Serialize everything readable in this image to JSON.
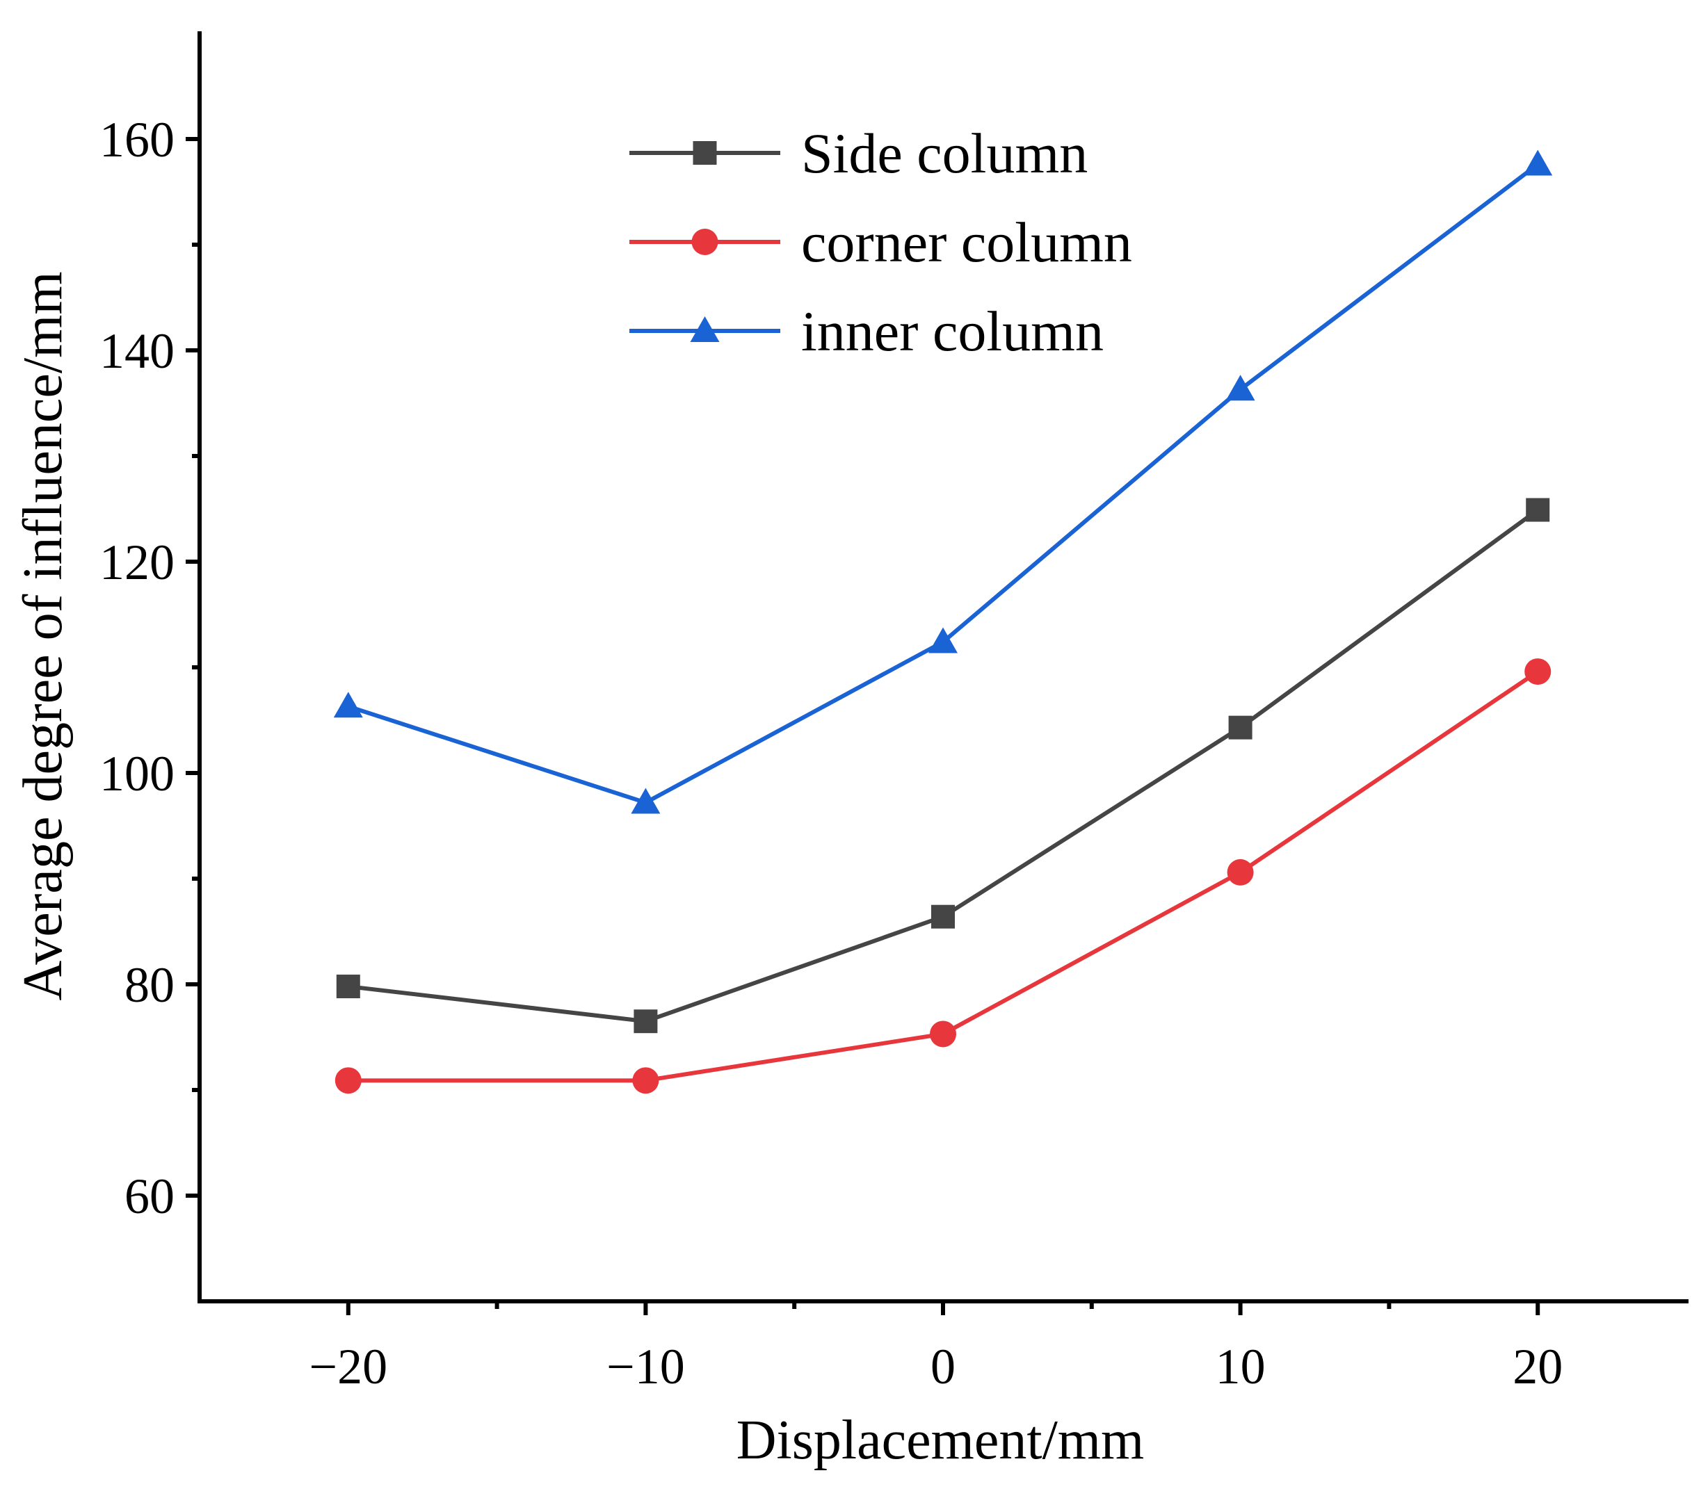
{
  "chart_data": {
    "type": "line",
    "title": "",
    "xlabel": "Displacement/mm",
    "ylabel": "Average degree of influence/mm",
    "xlim": [
      -25,
      25
    ],
    "ylim": [
      50,
      170
    ],
    "x": [
      -20,
      -10,
      0,
      10,
      20
    ],
    "x_ticks": [
      -20,
      -10,
      0,
      10,
      20
    ],
    "x_tick_labels": [
      "−20",
      "−10",
      "0",
      "10",
      "20"
    ],
    "x_minor_ticks": [
      -15,
      -5,
      5,
      15
    ],
    "y_ticks": [
      60,
      80,
      100,
      120,
      140,
      160
    ],
    "y_tick_labels": [
      "60",
      "80",
      "100",
      "120",
      "140",
      "160"
    ],
    "y_minor_ticks": [
      70,
      90,
      110,
      130,
      150
    ],
    "grid": false,
    "legend_position": "top-center",
    "series": [
      {
        "name": "Side column",
        "color": "#454545",
        "marker": "square",
        "values": [
          79.8,
          76.5,
          86.4,
          104.3,
          124.9
        ]
      },
      {
        "name": "corner column",
        "color": "#e8373c",
        "marker": "circle",
        "values": [
          70.9,
          70.9,
          75.3,
          90.6,
          109.6
        ]
      },
      {
        "name": "inner column",
        "color": "#1a63d4",
        "marker": "triangle",
        "values": [
          106.3,
          97.2,
          112.4,
          136.3,
          157.6
        ]
      }
    ]
  }
}
